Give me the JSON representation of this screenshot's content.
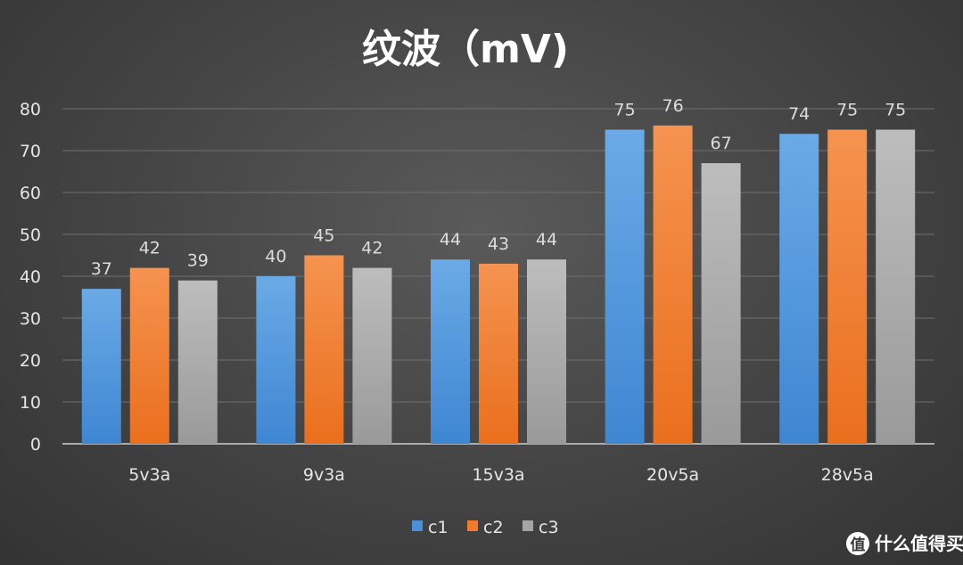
{
  "chart_data": {
    "type": "bar",
    "title": "纹波（mV)",
    "categories": [
      "5v3a",
      "9v3a",
      "15v3a",
      "20v5a",
      "28v5a"
    ],
    "series": [
      {
        "name": "c1",
        "values": [
          37,
          40,
          44,
          75,
          74
        ],
        "color": "#4a90d9"
      },
      {
        "name": "c2",
        "values": [
          42,
          45,
          43,
          76,
          75
        ],
        "color": "#f07b2a"
      },
      {
        "name": "c3",
        "values": [
          39,
          42,
          44,
          67,
          75
        ],
        "color": "#a5a5a5"
      }
    ],
    "ylim": [
      0,
      80
    ],
    "yticks": [
      0,
      10,
      20,
      30,
      40,
      50,
      60,
      70,
      80
    ],
    "grid": true,
    "legend_position": "bottom"
  },
  "watermark": {
    "icon": "zhi-badge-icon",
    "text": "什么值得买"
  }
}
